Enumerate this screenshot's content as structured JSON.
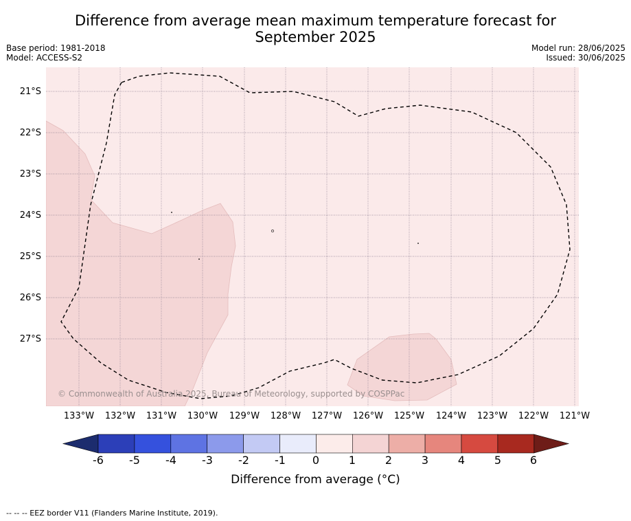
{
  "title_line1": "Difference from average mean maximum temperature forecast for",
  "title_line2": "September 2025",
  "base_period": "Base period: 1981-2018",
  "model": "Model: ACCESS-S2",
  "model_run": "Model run: 28/06/2025",
  "issued": "Issued: 30/06/2025",
  "lat_labels": [
    "21°S",
    "22°S",
    "23°S",
    "24°S",
    "25°S",
    "26°S",
    "27°S"
  ],
  "lon_labels": [
    "133°W",
    "132°W",
    "131°W",
    "130°W",
    "129°W",
    "128°W",
    "127°W",
    "126°W",
    "125°W",
    "124°W",
    "123°W",
    "122°W",
    "121°W"
  ],
  "copyright": "© Commonwealth of Australia 2025, Bureau of Meteorology, supported by COSPPac",
  "colorbar": {
    "ticks": [
      "-6",
      "-5",
      "-4",
      "-3",
      "-2",
      "-1",
      "0",
      "1",
      "2",
      "3",
      "4",
      "5",
      "6"
    ],
    "colors": [
      "#1f3a93",
      "#2c3fb8",
      "#3551dd",
      "#5e73e3",
      "#8c9aeb",
      "#c3caf4",
      "#e9ecfb",
      "#fcecea",
      "#f4d4d4",
      "#edaea7",
      "#e6867d",
      "#d64a40",
      "#a8291f"
    ],
    "under_color": "#1c2c6e",
    "over_color": "#6e1d18",
    "label": "Difference from average (°C)"
  },
  "map": {
    "background_color": "#fbeaea",
    "anomaly_1_to_2_color": "#f4d6d6"
  },
  "legend": "--  --  -- EEZ border V11 (Flanders Marine Institute, 2019)."
}
